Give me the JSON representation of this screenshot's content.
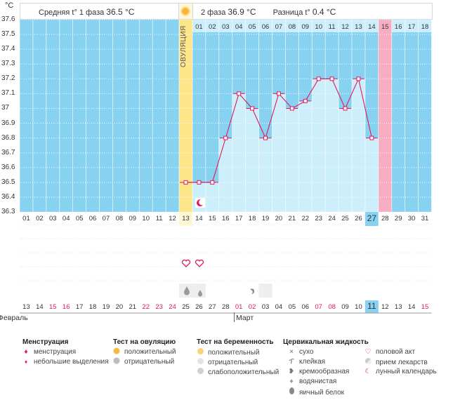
{
  "header": {
    "degree_unit": "°C",
    "phase1_label": "Средняя t° 1 фаза",
    "phase1_value": "36.5 °C",
    "phase2_label": "2 фаза",
    "phase2_value": "36.9 °C",
    "diff_label": "Разница t°",
    "diff_value": "0.4 °C"
  },
  "ovulation_label": "ОВУЛЯЦИЯ",
  "chart_data": {
    "type": "line",
    "ylim": [
      36.3,
      37.6
    ],
    "y_ticks": [
      "37.6",
      "37.5",
      "37.4",
      "37.3",
      "37.2",
      "37.1",
      "37",
      "36.9",
      "36.8",
      "36.7",
      "36.6",
      "36.5",
      "36.4",
      "36.3"
    ],
    "cycle_days": [
      "01",
      "02",
      "03",
      "04",
      "05",
      "06",
      "07",
      "08",
      "09",
      "10",
      "11",
      "12",
      "13",
      "14",
      "15",
      "16",
      "17",
      "18",
      "19",
      "20",
      "21",
      "22",
      "23",
      "24",
      "25",
      "26",
      "27",
      "28",
      "29",
      "30",
      "31"
    ],
    "phase2_days": [
      "01",
      "02",
      "03",
      "04",
      "05",
      "06",
      "07",
      "08",
      "09",
      "10",
      "11",
      "12",
      "13",
      "14",
      "15",
      "16",
      "17",
      "18"
    ],
    "ovulation_day": 13,
    "current_day": 27,
    "menstruation_day": 28,
    "series": [
      {
        "x": [
          13,
          14,
          15,
          16,
          17,
          18,
          19,
          20,
          21,
          22,
          23,
          24,
          25,
          26,
          27
        ],
        "values": [
          36.5,
          36.5,
          36.5,
          36.8,
          37.1,
          37.0,
          36.8,
          37.1,
          37.0,
          37.05,
          37.2,
          37.2,
          37.0,
          37.2,
          36.8
        ]
      }
    ]
  },
  "calendar": {
    "dates": [
      "13",
      "14",
      "15",
      "16",
      "17",
      "18",
      "19",
      "20",
      "21",
      "22",
      "23",
      "24",
      "25",
      "26",
      "27",
      "28",
      "01",
      "02",
      "03",
      "04",
      "05",
      "06",
      "07",
      "08",
      "09",
      "10",
      "11",
      "12",
      "13",
      "14",
      "15"
    ],
    "red_dates_idx": [
      2,
      3,
      9,
      10,
      11,
      16,
      17,
      22,
      23,
      30
    ],
    "today_idx": 26,
    "month1": "Февраль",
    "month2": "Март"
  },
  "legend": {
    "menstruation": {
      "title": "Менструация",
      "items": [
        "менструация",
        "небольшие выделения"
      ]
    },
    "ovulation_test": {
      "title": "Тест на овуляцию",
      "items": [
        "положительный",
        "отрицательный"
      ]
    },
    "pregnancy_test": {
      "title": "Тест на беременность",
      "items": [
        "положительный",
        "отрицательный",
        "слабоположительный"
      ]
    },
    "cervical": {
      "title": "Цервикальная жидкость",
      "items": [
        "сухо",
        "клейкая",
        "кремообразная",
        "водянистая",
        "яичный белок"
      ]
    },
    "other": {
      "items": [
        "половой акт",
        "прием лекарств",
        "лунный календарь"
      ]
    }
  },
  "colors": {
    "sky": "#87d2f0",
    "phase2": "#cdeefb",
    "ovulation": "#fde68a",
    "menstruation": "#f7aec2",
    "line": "#e0185c",
    "today": "#87d2f0"
  }
}
